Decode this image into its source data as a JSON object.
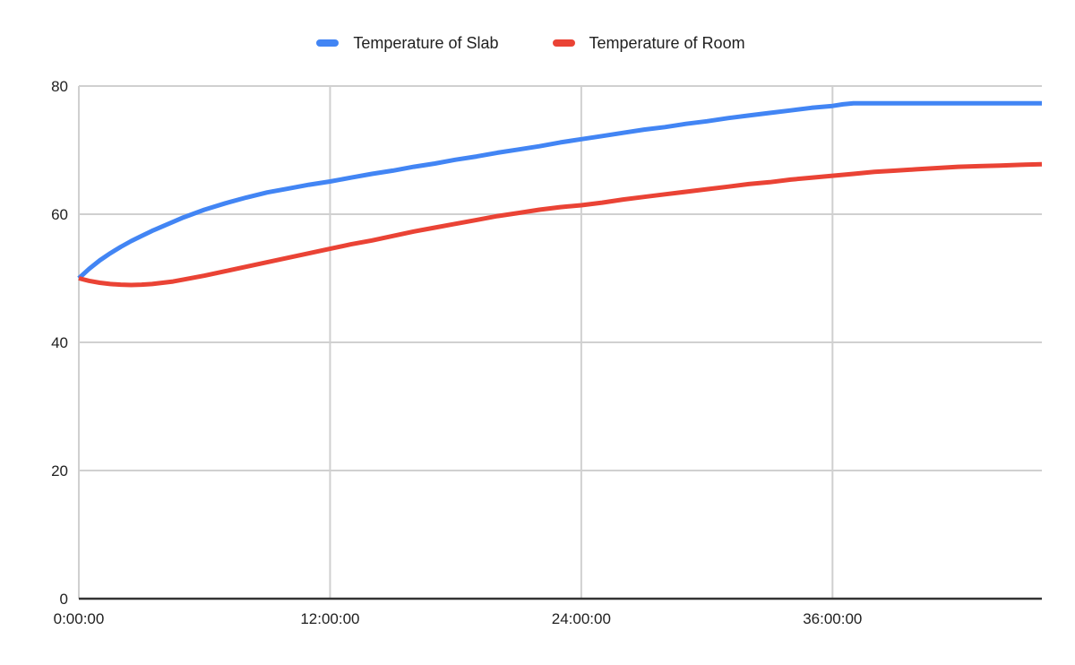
{
  "legend": [
    {
      "label": "Temperature of Slab",
      "color": "#4285f4"
    },
    {
      "label": "Temperature of Room",
      "color": "#ea4335"
    }
  ],
  "chart_data": {
    "type": "line",
    "title": "",
    "xlabel": "",
    "ylabel": "",
    "x_unit": "time (h:mm:ss)",
    "x_tick_labels": [
      "0:00:00",
      "12:00:00",
      "24:00:00",
      "36:00:00"
    ],
    "x_tick_hours": [
      0,
      12,
      24,
      36
    ],
    "x_range_hours": [
      0,
      46
    ],
    "y_ticks": [
      0,
      20,
      40,
      60,
      80
    ],
    "ylim": [
      0,
      80
    ],
    "grid": true,
    "legend_position": "top",
    "colors": {
      "grid": "#d0d0d0",
      "axis": "#333333",
      "text": "#212121",
      "background": "#ffffff"
    },
    "series": [
      {
        "name": "Temperature of Slab",
        "color": "#4285f4",
        "stroke_width": 5,
        "points": [
          [
            0,
            50.0
          ],
          [
            0.5,
            51.5
          ],
          [
            1,
            52.8
          ],
          [
            1.5,
            53.9
          ],
          [
            2,
            54.9
          ],
          [
            2.5,
            55.8
          ],
          [
            3,
            56.6
          ],
          [
            3.5,
            57.4
          ],
          [
            4,
            58.1
          ],
          [
            4.5,
            58.8
          ],
          [
            5,
            59.5
          ],
          [
            6,
            60.7
          ],
          [
            7,
            61.7
          ],
          [
            8,
            62.6
          ],
          [
            9,
            63.4
          ],
          [
            10,
            64.0
          ],
          [
            11,
            64.6
          ],
          [
            12,
            65.1
          ],
          [
            13,
            65.7
          ],
          [
            14,
            66.3
          ],
          [
            15,
            66.8
          ],
          [
            16,
            67.4
          ],
          [
            17,
            67.9
          ],
          [
            18,
            68.5
          ],
          [
            19,
            69.0
          ],
          [
            20,
            69.6
          ],
          [
            21,
            70.1
          ],
          [
            22,
            70.6
          ],
          [
            23,
            71.2
          ],
          [
            24,
            71.7
          ],
          [
            25,
            72.2
          ],
          [
            26,
            72.7
          ],
          [
            27,
            73.2
          ],
          [
            28,
            73.6
          ],
          [
            29,
            74.1
          ],
          [
            30,
            74.5
          ],
          [
            31,
            75.0
          ],
          [
            32,
            75.4
          ],
          [
            33,
            75.8
          ],
          [
            34,
            76.2
          ],
          [
            35,
            76.6
          ],
          [
            36,
            76.9
          ],
          [
            36.5,
            77.15
          ],
          [
            37,
            77.3
          ],
          [
            38,
            77.3
          ],
          [
            40,
            77.3
          ],
          [
            42,
            77.3
          ],
          [
            44,
            77.3
          ],
          [
            46,
            77.3
          ]
        ]
      },
      {
        "name": "Temperature of Room",
        "color": "#ea4335",
        "stroke_width": 5,
        "points": [
          [
            0,
            50.0
          ],
          [
            0.5,
            49.6
          ],
          [
            1,
            49.3
          ],
          [
            1.5,
            49.1
          ],
          [
            2,
            49.0
          ],
          [
            2.5,
            48.95
          ],
          [
            3,
            49.0
          ],
          [
            3.5,
            49.1
          ],
          [
            4,
            49.3
          ],
          [
            4.5,
            49.5
          ],
          [
            5,
            49.8
          ],
          [
            6,
            50.4
          ],
          [
            7,
            51.1
          ],
          [
            8,
            51.8
          ],
          [
            9,
            52.5
          ],
          [
            10,
            53.2
          ],
          [
            11,
            53.9
          ],
          [
            12,
            54.6
          ],
          [
            13,
            55.3
          ],
          [
            14,
            55.9
          ],
          [
            15,
            56.6
          ],
          [
            16,
            57.3
          ],
          [
            17,
            57.9
          ],
          [
            18,
            58.5
          ],
          [
            19,
            59.1
          ],
          [
            20,
            59.7
          ],
          [
            21,
            60.2
          ],
          [
            22,
            60.7
          ],
          [
            23,
            61.1
          ],
          [
            24,
            61.4
          ],
          [
            25,
            61.8
          ],
          [
            26,
            62.3
          ],
          [
            27,
            62.7
          ],
          [
            28,
            63.1
          ],
          [
            29,
            63.5
          ],
          [
            30,
            63.9
          ],
          [
            31,
            64.3
          ],
          [
            32,
            64.7
          ],
          [
            33,
            65.0
          ],
          [
            34,
            65.4
          ],
          [
            35,
            65.7
          ],
          [
            36,
            66.0
          ],
          [
            37,
            66.3
          ],
          [
            38,
            66.6
          ],
          [
            39,
            66.8
          ],
          [
            40,
            67.0
          ],
          [
            41,
            67.2
          ],
          [
            42,
            67.4
          ],
          [
            43,
            67.5
          ],
          [
            44,
            67.6
          ],
          [
            45,
            67.7
          ],
          [
            46,
            67.8
          ]
        ]
      }
    ]
  }
}
